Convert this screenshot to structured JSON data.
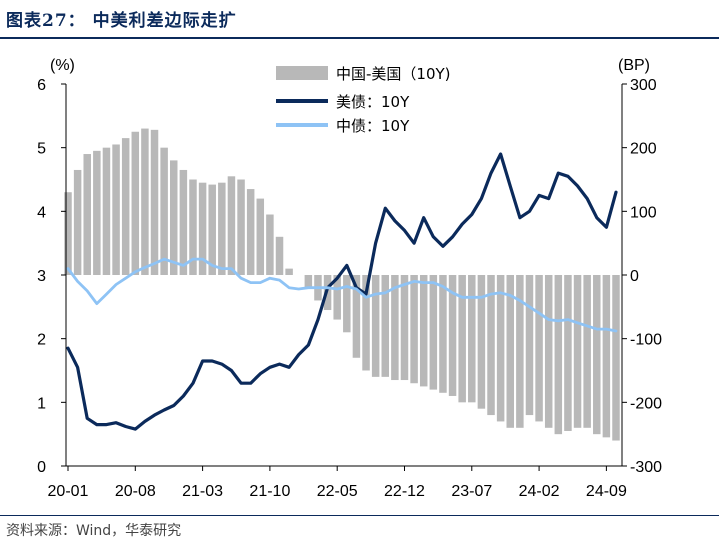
{
  "header": {
    "title": "图表27：  中美利差边际走扩"
  },
  "footer": {
    "source": "资料来源：Wind，华泰研究"
  },
  "chart_data": {
    "type": "line+bar",
    "left_axis": {
      "label": "(%)",
      "range": [
        0,
        6
      ],
      "ticks": [
        "0",
        "1",
        "2",
        "3",
        "4",
        "5",
        "6"
      ]
    },
    "right_axis": {
      "label": "(BP)",
      "range": [
        -300,
        300
      ],
      "ticks": [
        "-300",
        "-200",
        "-100",
        "0",
        "100",
        "200",
        "300"
      ]
    },
    "x_axis": {
      "ticks": [
        "20-01",
        "20-08",
        "21-03",
        "21-10",
        "22-05",
        "22-12",
        "23-07",
        "24-02",
        "24-09"
      ]
    },
    "x": [
      "20-01",
      "20-02",
      "20-03",
      "20-04",
      "20-05",
      "20-06",
      "20-07",
      "20-08",
      "20-09",
      "20-10",
      "20-11",
      "20-12",
      "21-01",
      "21-02",
      "21-03",
      "21-04",
      "21-05",
      "21-06",
      "21-07",
      "21-08",
      "21-09",
      "21-10",
      "21-11",
      "21-12",
      "22-01",
      "22-02",
      "22-03",
      "22-04",
      "22-05",
      "22-06",
      "22-07",
      "22-08",
      "22-09",
      "22-10",
      "22-11",
      "22-12",
      "23-01",
      "23-02",
      "23-03",
      "23-04",
      "23-05",
      "23-06",
      "23-07",
      "23-08",
      "23-09",
      "23-10",
      "23-11",
      "23-12",
      "24-01",
      "24-02",
      "24-03",
      "24-04",
      "24-05",
      "24-06",
      "24-07",
      "24-08",
      "24-09",
      "24-10"
    ],
    "series": [
      {
        "name": "中国-美国（10Y)",
        "axis": "right",
        "kind": "bar",
        "color": "#b8b8b8",
        "values": [
          130,
          165,
          190,
          195,
          200,
          205,
          215,
          225,
          230,
          228,
          200,
          180,
          165,
          150,
          145,
          142,
          145,
          155,
          150,
          135,
          120,
          95,
          60,
          10,
          0,
          -20,
          -40,
          -55,
          -70,
          -90,
          -130,
          -150,
          -160,
          -160,
          -165,
          -165,
          -170,
          -175,
          -180,
          -185,
          -190,
          -200,
          -200,
          -210,
          -220,
          -230,
          -240,
          -240,
          -220,
          -230,
          -240,
          -250,
          -245,
          -240,
          -240,
          -250,
          -255,
          -260
        ]
      },
      {
        "name": "美债：10Y",
        "axis": "left",
        "kind": "line",
        "color": "#0b2a5b",
        "values": [
          1.85,
          1.55,
          0.75,
          0.65,
          0.65,
          0.68,
          0.62,
          0.58,
          0.7,
          0.8,
          0.88,
          0.95,
          1.1,
          1.3,
          1.65,
          1.65,
          1.6,
          1.5,
          1.3,
          1.3,
          1.45,
          1.55,
          1.6,
          1.55,
          1.75,
          1.9,
          2.3,
          2.8,
          2.95,
          3.15,
          2.8,
          2.7,
          3.5,
          4.05,
          3.85,
          3.7,
          3.5,
          3.9,
          3.6,
          3.45,
          3.6,
          3.8,
          3.95,
          4.2,
          4.6,
          4.9,
          4.4,
          3.9,
          4.0,
          4.25,
          4.2,
          4.6,
          4.55,
          4.4,
          4.2,
          3.9,
          3.75,
          4.3
        ]
      },
      {
        "name": "中债：10Y",
        "axis": "left",
        "kind": "line",
        "color": "#8ec3f5",
        "values": [
          3.1,
          2.9,
          2.75,
          2.55,
          2.7,
          2.85,
          2.95,
          3.05,
          3.12,
          3.18,
          3.25,
          3.2,
          3.15,
          3.25,
          3.25,
          3.15,
          3.1,
          3.1,
          2.95,
          2.88,
          2.88,
          2.95,
          2.92,
          2.8,
          2.78,
          2.8,
          2.8,
          2.8,
          2.78,
          2.82,
          2.78,
          2.65,
          2.7,
          2.72,
          2.8,
          2.85,
          2.9,
          2.88,
          2.88,
          2.82,
          2.72,
          2.65,
          2.65,
          2.65,
          2.7,
          2.72,
          2.68,
          2.6,
          2.5,
          2.4,
          2.3,
          2.28,
          2.3,
          2.25,
          2.2,
          2.15,
          2.15,
          2.12
        ]
      }
    ],
    "legend": {
      "position": "top-center"
    }
  }
}
